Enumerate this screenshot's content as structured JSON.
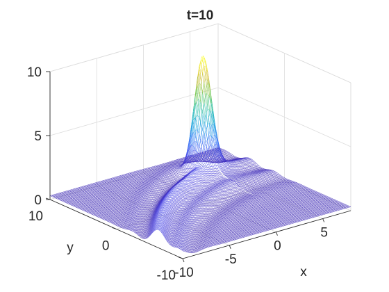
{
  "chart_data": {
    "type": "surface",
    "title": "t=10",
    "xlabel": "x",
    "ylabel": "y",
    "zlabel": "",
    "xlim": [
      -10,
      8
    ],
    "ylim": [
      -10,
      10
    ],
    "zlim": [
      0,
      10
    ],
    "x_ticks": [
      -10,
      -5,
      0,
      5
    ],
    "y_ticks": [
      -10,
      0,
      10
    ],
    "z_ticks": [
      0,
      5,
      10
    ],
    "x_tick_labels": [
      "-10",
      "-5",
      "0",
      "5"
    ],
    "y_tick_labels": [
      "-10",
      "0",
      "10"
    ],
    "z_tick_labels": [
      "0",
      "5",
      "10"
    ],
    "grid": true,
    "colormap": [
      "#3e26a8",
      "#4742e4",
      "#3b73f7",
      "#1aa2e2",
      "#27c0ab",
      "#7ac94c",
      "#d6bc35",
      "#f9fb15"
    ],
    "surface": {
      "description_free_params": true,
      "baseline": 0.3,
      "peak": {
        "x": 3.5,
        "y": 6.0,
        "height": 8.8,
        "width": 0.75
      },
      "ridge": {
        "height": 0.9,
        "width": 1.4
      },
      "ripple": {
        "height": 0.35
      }
    }
  }
}
